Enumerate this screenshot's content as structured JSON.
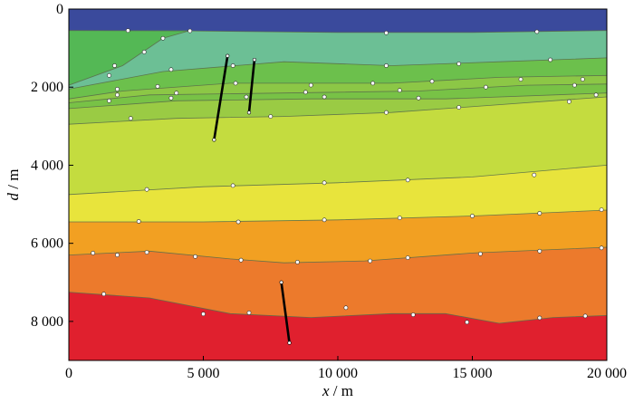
{
  "chart_data": {
    "type": "filled-contour",
    "title": "",
    "xlabel": {
      "var": "x",
      "unit": " / m"
    },
    "ylabel": {
      "var": "d",
      "unit": " / m"
    },
    "xlim": [
      0,
      20000
    ],
    "ylim": [
      0,
      9000
    ],
    "y_inverted": true,
    "xticks": [
      {
        "value": 0,
        "label": "0"
      },
      {
        "value": 5000,
        "label": "5 000"
      },
      {
        "value": 10000,
        "label": "10 000"
      },
      {
        "value": 15000,
        "label": "15 000"
      },
      {
        "value": 20000,
        "label": "20 000"
      }
    ],
    "yticks": [
      {
        "value": 0,
        "label": "0"
      },
      {
        "value": 2000,
        "label": "2 000"
      },
      {
        "value": 4000,
        "label": "4 000"
      },
      {
        "value": 6000,
        "label": "6 000"
      },
      {
        "value": 8000,
        "label": "8 000"
      }
    ],
    "boundaries": [
      {
        "name": "b1",
        "points": [
          [
            0,
            550
          ],
          [
            4500,
            560
          ],
          [
            10000,
            600
          ],
          [
            15000,
            600
          ],
          [
            20000,
            550
          ]
        ]
      },
      {
        "name": "b2",
        "points": [
          [
            0,
            1950
          ],
          [
            2000,
            1450
          ],
          [
            3500,
            750
          ],
          [
            4500,
            550
          ]
        ]
      },
      {
        "name": "b3",
        "points": [
          [
            0,
            2050
          ],
          [
            3500,
            1600
          ],
          [
            8000,
            1350
          ],
          [
            12000,
            1450
          ],
          [
            16000,
            1350
          ],
          [
            20000,
            1250
          ]
        ]
      },
      {
        "name": "b4",
        "points": [
          [
            0,
            2300
          ],
          [
            2000,
            2100
          ],
          [
            6000,
            1900
          ],
          [
            12000,
            1900
          ],
          [
            16000,
            1750
          ],
          [
            20000,
            1700
          ]
        ]
      },
      {
        "name": "b5",
        "points": [
          [
            0,
            2400
          ],
          [
            3000,
            2200
          ],
          [
            8000,
            2150
          ],
          [
            13000,
            2100
          ],
          [
            17000,
            1950
          ],
          [
            20000,
            1920
          ]
        ]
      },
      {
        "name": "b6",
        "points": [
          [
            0,
            2550
          ],
          [
            4000,
            2350
          ],
          [
            9000,
            2300
          ],
          [
            14000,
            2300
          ],
          [
            20000,
            2150
          ]
        ]
      },
      {
        "name": "b7",
        "points": [
          [
            0,
            2950
          ],
          [
            4000,
            2800
          ],
          [
            8000,
            2750
          ],
          [
            12000,
            2650
          ],
          [
            16000,
            2450
          ],
          [
            20000,
            2250
          ]
        ]
      },
      {
        "name": "b8",
        "points": [
          [
            0,
            4750
          ],
          [
            5000,
            4550
          ],
          [
            10000,
            4450
          ],
          [
            15000,
            4300
          ],
          [
            20000,
            4000
          ]
        ]
      },
      {
        "name": "b9",
        "points": [
          [
            0,
            5450
          ],
          [
            5000,
            5450
          ],
          [
            10000,
            5400
          ],
          [
            15000,
            5300
          ],
          [
            20000,
            5150
          ]
        ]
      },
      {
        "name": "b10",
        "points": [
          [
            0,
            6300
          ],
          [
            3000,
            6200
          ],
          [
            6000,
            6400
          ],
          [
            8000,
            6500
          ],
          [
            11000,
            6450
          ],
          [
            15000,
            6250
          ],
          [
            20000,
            6100
          ]
        ]
      },
      {
        "name": "b11",
        "points": [
          [
            0,
            7250
          ],
          [
            3000,
            7400
          ],
          [
            6000,
            7800
          ],
          [
            9000,
            7900
          ],
          [
            12000,
            7800
          ],
          [
            14000,
            7800
          ],
          [
            16000,
            8050
          ],
          [
            18000,
            7900
          ],
          [
            20000,
            7850
          ]
        ]
      }
    ],
    "fill_colors": [
      "#3a4a9c",
      "#6cbf95",
      "#54b855",
      "#6cc04c",
      "#8cc746",
      "#78c246",
      "#9acb44",
      "#c4dc3f",
      "#e8e43c",
      "#f2a022",
      "#ec7a2c",
      "#e0202e"
    ],
    "line_color": "#5a6e4a",
    "wells": [
      {
        "name": "well-1",
        "top": [
          5900,
          1200
        ],
        "bottom": [
          5400,
          3350
        ]
      },
      {
        "name": "well-2",
        "top": [
          6900,
          1300
        ],
        "bottom": [
          6700,
          2650
        ]
      },
      {
        "name": "well-3",
        "top": [
          7900,
          7000
        ],
        "bottom": [
          8200,
          8550
        ]
      }
    ],
    "survey_points": [
      [
        2200,
        550
      ],
      [
        4500,
        560
      ],
      [
        11800,
        610
      ],
      [
        17400,
        580
      ],
      [
        3500,
        750
      ],
      [
        2800,
        1100
      ],
      [
        1700,
        1450
      ],
      [
        1500,
        1700
      ],
      [
        3800,
        1550
      ],
      [
        6100,
        1450
      ],
      [
        11800,
        1450
      ],
      [
        14500,
        1400
      ],
      [
        17900,
        1300
      ],
      [
        1800,
        2050
      ],
      [
        3300,
        1980
      ],
      [
        6200,
        1900
      ],
      [
        9000,
        1950
      ],
      [
        11300,
        1900
      ],
      [
        13500,
        1850
      ],
      [
        16800,
        1800
      ],
      [
        19100,
        1800
      ],
      [
        1800,
        2200
      ],
      [
        4000,
        2150
      ],
      [
        8800,
        2130
      ],
      [
        12300,
        2080
      ],
      [
        15500,
        2000
      ],
      [
        18800,
        1950
      ],
      [
        1500,
        2350
      ],
      [
        3800,
        2280
      ],
      [
        6600,
        2250
      ],
      [
        9500,
        2250
      ],
      [
        13000,
        2280
      ],
      [
        19600,
        2200
      ],
      [
        2300,
        2800
      ],
      [
        7500,
        2750
      ],
      [
        11800,
        2650
      ],
      [
        14500,
        2520
      ],
      [
        18600,
        2370
      ],
      [
        2900,
        4620
      ],
      [
        6100,
        4520
      ],
      [
        9500,
        4450
      ],
      [
        12600,
        4380
      ],
      [
        17300,
        4250
      ],
      [
        2600,
        5440
      ],
      [
        6300,
        5450
      ],
      [
        9500,
        5400
      ],
      [
        12300,
        5350
      ],
      [
        15000,
        5300
      ],
      [
        17500,
        5230
      ],
      [
        19800,
        5140
      ],
      [
        900,
        6250
      ],
      [
        1800,
        6300
      ],
      [
        2900,
        6230
      ],
      [
        4700,
        6340
      ],
      [
        6400,
        6430
      ],
      [
        8500,
        6480
      ],
      [
        11200,
        6450
      ],
      [
        12600,
        6370
      ],
      [
        15300,
        6270
      ],
      [
        17500,
        6200
      ],
      [
        19800,
        6120
      ],
      [
        1300,
        7300
      ],
      [
        5000,
        7810
      ],
      [
        6700,
        7780
      ],
      [
        10300,
        7650
      ],
      [
        12800,
        7830
      ],
      [
        14800,
        8020
      ],
      [
        17500,
        7910
      ],
      [
        19200,
        7860
      ]
    ]
  }
}
